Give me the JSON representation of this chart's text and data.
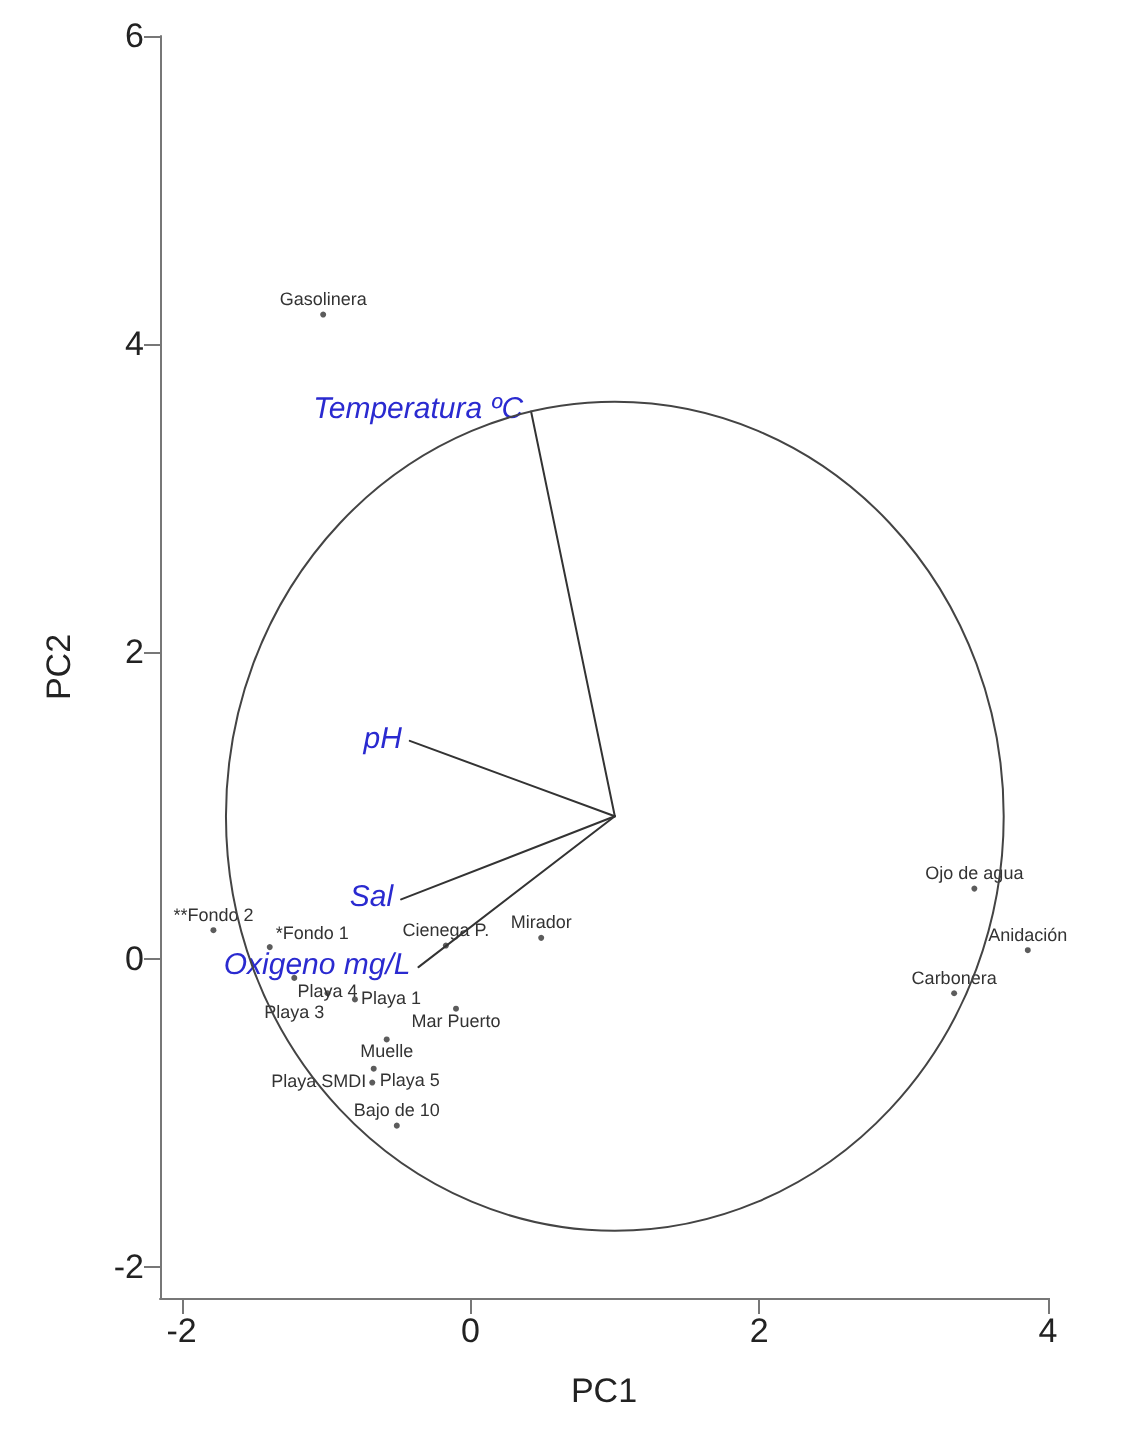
{
  "chart_data": {
    "type": "scatter",
    "xlabel": "PC1",
    "ylabel": "PC2",
    "xlim": [
      -2.15,
      4
    ],
    "ylim": [
      -2.2,
      6
    ],
    "xticks": [
      -2,
      0,
      2,
      4
    ],
    "yticks": [
      -2,
      0,
      2,
      4,
      6
    ],
    "grid": false,
    "legend": false,
    "series": [
      {
        "marker": "circle",
        "color": "#333333",
        "x": [
          -1.02,
          -1.78,
          -1.39,
          -1.22,
          -0.99,
          -0.8,
          -0.17,
          0.49,
          -0.1,
          -0.58,
          -0.67,
          -0.68,
          -0.51,
          3.49,
          3.86,
          3.35
        ],
        "values": [
          4.19,
          0.19,
          0.08,
          -0.12,
          -0.22,
          -0.26,
          0.09,
          0.14,
          -0.32,
          -0.52,
          -0.71,
          -0.8,
          -1.08,
          0.46,
          0.06,
          -0.22
        ],
        "value_labels": [
          "Gasolinera",
          "**Fondo 2",
          "*Fondo 1",
          "Playa 3",
          "Playa 4",
          "Playa 1",
          "Cienega P.",
          "Mirador",
          "Mar Puerto",
          "Muelle",
          "Playa 5",
          "Playa SMDI",
          "Bajo de 10",
          "Ojo de agua",
          "Anidación",
          "Carbonera"
        ]
      },
      {
        "type": "line",
        "name": "Temperatura ºC",
        "color": "#333333",
        "x": [
          1.0,
          0.42
        ],
        "values": [
          0.93,
          3.56
        ]
      },
      {
        "type": "line",
        "name": "pH",
        "color": "#333333",
        "x": [
          1.0,
          -0.42
        ],
        "values": [
          0.93,
          1.42
        ]
      },
      {
        "type": "line",
        "name": "Sal",
        "color": "#333333",
        "x": [
          1.0,
          -0.48
        ],
        "values": [
          0.93,
          0.39
        ]
      },
      {
        "type": "line",
        "name": "Oxigeno mg/L",
        "color": "#333333",
        "x": [
          1.0,
          -0.36
        ],
        "values": [
          0.93,
          -0.05
        ]
      }
    ]
  }
}
